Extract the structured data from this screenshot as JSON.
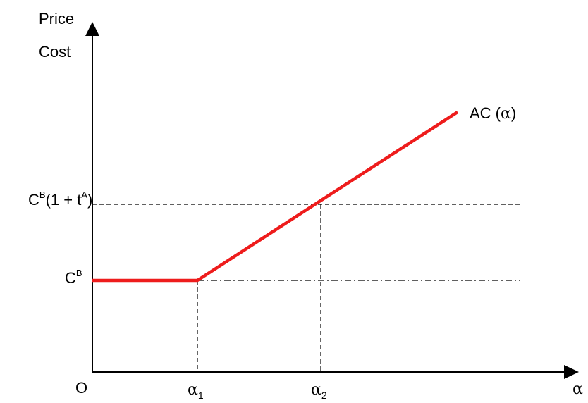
{
  "axes": {
    "y_label_line1": "Price",
    "y_label_line2": "Cost",
    "x_label": "α",
    "origin": "O"
  },
  "curve": {
    "label_text": "AC (",
    "label_symbol": "α",
    "label_close": ")",
    "color": "#ee1c1c"
  },
  "x_ticks": {
    "alpha1_symbol": "α",
    "alpha1_sub": "1",
    "alpha2_symbol": "α",
    "alpha2_sub": "2"
  },
  "y_ticks": {
    "cb_base": "C",
    "cb_sup": "B",
    "upper_base": "C",
    "upper_sup": "B",
    "upper_mid": "(1 + t",
    "upper_sup2": "A",
    "upper_close": ")"
  }
}
